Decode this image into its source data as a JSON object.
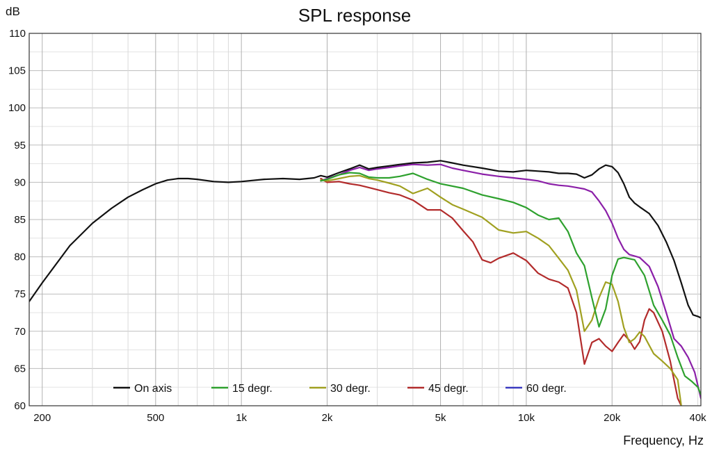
{
  "chart_data": {
    "type": "line",
    "title": "SPL response",
    "ylabel": "dB",
    "xlabel": "Frequency, Hz",
    "x_scale": "log",
    "xlim": [
      180,
      41000
    ],
    "ylim": [
      60,
      110
    ],
    "y_ticks": [
      60,
      65,
      70,
      75,
      80,
      85,
      90,
      95,
      100,
      105,
      110
    ],
    "x_ticks": [
      {
        "value": 200,
        "label": "200"
      },
      {
        "value": 500,
        "label": "500"
      },
      {
        "value": 1000,
        "label": "1k"
      },
      {
        "value": 2000,
        "label": "2k"
      },
      {
        "value": 5000,
        "label": "5k"
      },
      {
        "value": 10000,
        "label": "10k"
      },
      {
        "value": 20000,
        "label": "20k"
      },
      {
        "value": 40000,
        "label": "40k"
      }
    ],
    "grid": true,
    "legend_position": "bottom",
    "series": [
      {
        "name": "On axis",
        "color": "#111111",
        "points": [
          [
            180,
            74
          ],
          [
            200,
            76.5
          ],
          [
            250,
            81.5
          ],
          [
            300,
            84.5
          ],
          [
            350,
            86.5
          ],
          [
            400,
            88
          ],
          [
            450,
            89
          ],
          [
            500,
            89.8
          ],
          [
            550,
            90.3
          ],
          [
            600,
            90.5
          ],
          [
            650,
            90.5
          ],
          [
            700,
            90.4
          ],
          [
            800,
            90.1
          ],
          [
            900,
            90
          ],
          [
            1000,
            90.1
          ],
          [
            1200,
            90.4
          ],
          [
            1400,
            90.5
          ],
          [
            1600,
            90.4
          ],
          [
            1800,
            90.6
          ],
          [
            1900,
            90.9
          ],
          [
            2000,
            90.7
          ],
          [
            2200,
            91.3
          ],
          [
            2400,
            91.8
          ],
          [
            2600,
            92.3
          ],
          [
            2800,
            91.8
          ],
          [
            3000,
            92
          ],
          [
            3300,
            92.2
          ],
          [
            3600,
            92.4
          ],
          [
            4000,
            92.6
          ],
          [
            4500,
            92.7
          ],
          [
            5000,
            92.9
          ],
          [
            5500,
            92.6
          ],
          [
            6000,
            92.3
          ],
          [
            7000,
            91.9
          ],
          [
            8000,
            91.5
          ],
          [
            9000,
            91.4
          ],
          [
            10000,
            91.6
          ],
          [
            11000,
            91.5
          ],
          [
            12000,
            91.4
          ],
          [
            13000,
            91.2
          ],
          [
            14000,
            91.2
          ],
          [
            15000,
            91.1
          ],
          [
            16000,
            90.6
          ],
          [
            17000,
            91
          ],
          [
            18000,
            91.8
          ],
          [
            19000,
            92.3
          ],
          [
            20000,
            92.1
          ],
          [
            21000,
            91.3
          ],
          [
            22000,
            89.8
          ],
          [
            23000,
            88
          ],
          [
            24000,
            87.2
          ],
          [
            25000,
            86.7
          ],
          [
            27000,
            85.8
          ],
          [
            29000,
            84.2
          ],
          [
            31000,
            82
          ],
          [
            33000,
            79.5
          ],
          [
            35000,
            76.5
          ],
          [
            37000,
            73.5
          ],
          [
            38500,
            72.2
          ],
          [
            40000,
            72
          ],
          [
            41000,
            71.8
          ]
        ]
      },
      {
        "name": "15 degr.",
        "color": "#2ea12e",
        "points": [
          [
            1900,
            90.2
          ],
          [
            2000,
            90.4
          ],
          [
            2200,
            91
          ],
          [
            2400,
            91.3
          ],
          [
            2600,
            91.2
          ],
          [
            2800,
            90.7
          ],
          [
            3000,
            90.6
          ],
          [
            3300,
            90.6
          ],
          [
            3600,
            90.8
          ],
          [
            4000,
            91.2
          ],
          [
            4500,
            90.4
          ],
          [
            5000,
            89.8
          ],
          [
            6000,
            89.2
          ],
          [
            7000,
            88.3
          ],
          [
            8000,
            87.8
          ],
          [
            9000,
            87.3
          ],
          [
            10000,
            86.6
          ],
          [
            11000,
            85.6
          ],
          [
            12000,
            85
          ],
          [
            13000,
            85.2
          ],
          [
            14000,
            83.4
          ],
          [
            15000,
            80.5
          ],
          [
            16000,
            78.8
          ],
          [
            17000,
            74.5
          ],
          [
            18000,
            70.6
          ],
          [
            19000,
            73
          ],
          [
            20000,
            77.5
          ],
          [
            21000,
            79.7
          ],
          [
            22000,
            79.9
          ],
          [
            24000,
            79.6
          ],
          [
            26000,
            77.5
          ],
          [
            28000,
            73.5
          ],
          [
            30000,
            71.5
          ],
          [
            32000,
            69.5
          ],
          [
            34000,
            66.5
          ],
          [
            36000,
            64
          ],
          [
            38000,
            63.3
          ],
          [
            40000,
            62.5
          ],
          [
            41000,
            61.5
          ]
        ]
      },
      {
        "name": "30 degr.",
        "color": "#a0a020",
        "points": [
          [
            1900,
            90.3
          ],
          [
            2000,
            90.2
          ],
          [
            2200,
            90.5
          ],
          [
            2400,
            90.8
          ],
          [
            2600,
            90.9
          ],
          [
            2800,
            90.5
          ],
          [
            3000,
            90.3
          ],
          [
            3300,
            89.9
          ],
          [
            3600,
            89.5
          ],
          [
            4000,
            88.5
          ],
          [
            4500,
            89.2
          ],
          [
            5000,
            88
          ],
          [
            5500,
            87
          ],
          [
            6000,
            86.4
          ],
          [
            7000,
            85.3
          ],
          [
            8000,
            83.6
          ],
          [
            9000,
            83.2
          ],
          [
            10000,
            83.4
          ],
          [
            11000,
            82.5
          ],
          [
            12000,
            81.5
          ],
          [
            13000,
            79.8
          ],
          [
            14000,
            78.2
          ],
          [
            15000,
            75.5
          ],
          [
            16000,
            70
          ],
          [
            17000,
            71.5
          ],
          [
            18000,
            74.5
          ],
          [
            19000,
            76.6
          ],
          [
            20000,
            76.3
          ],
          [
            21000,
            74
          ],
          [
            22000,
            70.5
          ],
          [
            23000,
            68.5
          ],
          [
            24000,
            69
          ],
          [
            25000,
            69.9
          ],
          [
            26000,
            69.3
          ],
          [
            28000,
            67
          ],
          [
            30000,
            66
          ],
          [
            32000,
            65
          ],
          [
            34000,
            63.5
          ],
          [
            35000,
            60
          ]
        ]
      },
      {
        "name": "45 degr.",
        "color": "#b22b2b",
        "points": [
          [
            1900,
            90.5
          ],
          [
            2000,
            90
          ],
          [
            2200,
            90.1
          ],
          [
            2400,
            89.8
          ],
          [
            2600,
            89.6
          ],
          [
            2800,
            89.3
          ],
          [
            3000,
            89
          ],
          [
            3300,
            88.6
          ],
          [
            3600,
            88.3
          ],
          [
            4000,
            87.6
          ],
          [
            4500,
            86.3
          ],
          [
            5000,
            86.3
          ],
          [
            5500,
            85.2
          ],
          [
            6000,
            83.5
          ],
          [
            6500,
            82
          ],
          [
            7000,
            79.6
          ],
          [
            7500,
            79.2
          ],
          [
            8000,
            79.8
          ],
          [
            9000,
            80.5
          ],
          [
            10000,
            79.5
          ],
          [
            11000,
            77.8
          ],
          [
            12000,
            77
          ],
          [
            13000,
            76.6
          ],
          [
            14000,
            75.8
          ],
          [
            15000,
            72.5
          ],
          [
            16000,
            65.6
          ],
          [
            17000,
            68.5
          ],
          [
            18000,
            69
          ],
          [
            19000,
            68
          ],
          [
            20000,
            67.3
          ],
          [
            21000,
            68.5
          ],
          [
            22000,
            69.6
          ],
          [
            23000,
            68.8
          ],
          [
            24000,
            67.6
          ],
          [
            25000,
            68.6
          ],
          [
            26000,
            71.5
          ],
          [
            27000,
            73
          ],
          [
            28000,
            72.5
          ],
          [
            30000,
            70
          ],
          [
            32000,
            66
          ],
          [
            34000,
            61
          ],
          [
            35000,
            60
          ]
        ]
      },
      {
        "name": "60 degr.",
        "color": "#8b1fa8",
        "points": [
          [
            1900,
            90.2
          ],
          [
            2000,
            90.5
          ],
          [
            2200,
            91
          ],
          [
            2400,
            91.6
          ],
          [
            2600,
            92
          ],
          [
            2800,
            91.6
          ],
          [
            3000,
            91.8
          ],
          [
            3300,
            92
          ],
          [
            3600,
            92.2
          ],
          [
            4000,
            92.4
          ],
          [
            4500,
            92.3
          ],
          [
            5000,
            92.4
          ],
          [
            5500,
            91.9
          ],
          [
            6000,
            91.6
          ],
          [
            7000,
            91.1
          ],
          [
            8000,
            90.8
          ],
          [
            9000,
            90.6
          ],
          [
            10000,
            90.4
          ],
          [
            11000,
            90.2
          ],
          [
            12000,
            89.8
          ],
          [
            13000,
            89.6
          ],
          [
            14000,
            89.5
          ],
          [
            15000,
            89.3
          ],
          [
            16000,
            89.1
          ],
          [
            17000,
            88.7
          ],
          [
            18000,
            87.5
          ],
          [
            19000,
            86.2
          ],
          [
            20000,
            84.5
          ],
          [
            21000,
            82.5
          ],
          [
            22000,
            81
          ],
          [
            23000,
            80.3
          ],
          [
            24000,
            80.1
          ],
          [
            25000,
            79.9
          ],
          [
            27000,
            78.7
          ],
          [
            29000,
            76
          ],
          [
            31000,
            72.5
          ],
          [
            33000,
            69
          ],
          [
            35000,
            68
          ],
          [
            37000,
            66.5
          ],
          [
            39000,
            64.5
          ],
          [
            41000,
            61
          ]
        ]
      }
    ]
  }
}
